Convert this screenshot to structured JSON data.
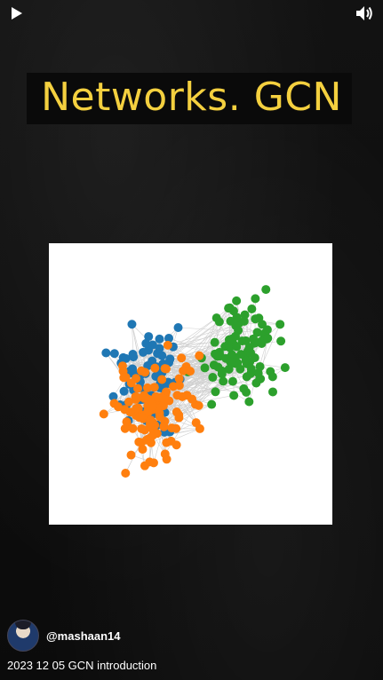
{
  "player": {
    "play_icon": "play-icon",
    "volume_icon": "volume-icon"
  },
  "slide": {
    "title": "Networks. GCN",
    "title_color": "#f4d03f"
  },
  "graph": {
    "description_colors": {
      "cluster_blue": "#1f77b4",
      "cluster_orange": "#ff7f0e",
      "cluster_green": "#2ca02c",
      "edge": "#d0d0d0"
    }
  },
  "channel": {
    "handle": "@mashaan14"
  },
  "video": {
    "title": "2023 12 05 GCN introduction"
  }
}
